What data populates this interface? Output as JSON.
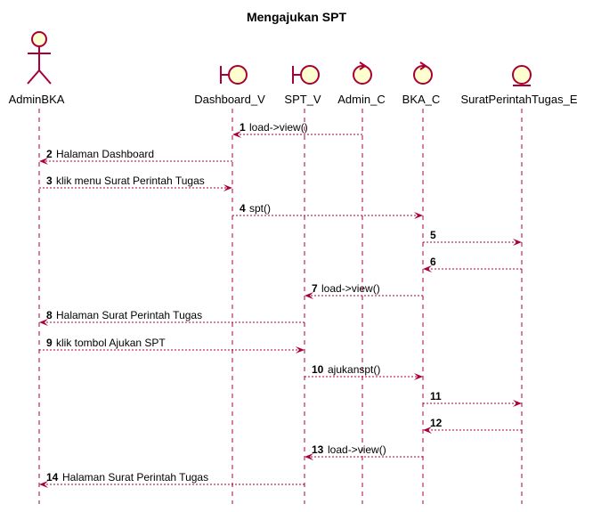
{
  "title": "Mengajukan SPT",
  "colors": {
    "line": "#A80036",
    "icon_fill": "#FEFECE",
    "text": "#000000",
    "background": "#FFFFFF"
  },
  "participants": [
    {
      "id": "AdminBKA",
      "label": "AdminBKA",
      "kind": "actor"
    },
    {
      "id": "Dashboard_V",
      "label": "Dashboard_V",
      "kind": "boundary"
    },
    {
      "id": "SPT_V",
      "label": "SPT_V",
      "kind": "boundary"
    },
    {
      "id": "Admin_C",
      "label": "Admin_C",
      "kind": "control"
    },
    {
      "id": "BKA_C",
      "label": "BKA_C",
      "kind": "control"
    },
    {
      "id": "SuratPerintahTugas_E",
      "label": "SuratPerintahTugas_E",
      "kind": "entity"
    }
  ],
  "messages": [
    {
      "num": "1",
      "text": "load->view()",
      "from": "Admin_C",
      "to": "Dashboard_V"
    },
    {
      "num": "2",
      "text": "Halaman Dashboard",
      "from": "Dashboard_V",
      "to": "AdminBKA"
    },
    {
      "num": "3",
      "text": "klik menu Surat Perintah Tugas",
      "from": "AdminBKA",
      "to": "Dashboard_V"
    },
    {
      "num": "4",
      "text": "spt()",
      "from": "Dashboard_V",
      "to": "BKA_C"
    },
    {
      "num": "5",
      "text": "",
      "from": "BKA_C",
      "to": "SuratPerintahTugas_E"
    },
    {
      "num": "6",
      "text": "",
      "from": "SuratPerintahTugas_E",
      "to": "BKA_C"
    },
    {
      "num": "7",
      "text": "load->view()",
      "from": "BKA_C",
      "to": "SPT_V"
    },
    {
      "num": "8",
      "text": "Halaman Surat Perintah Tugas",
      "from": "SPT_V",
      "to": "AdminBKA"
    },
    {
      "num": "9",
      "text": "klik tombol Ajukan SPT",
      "from": "AdminBKA",
      "to": "SPT_V"
    },
    {
      "num": "10",
      "text": "ajukanspt()",
      "from": "SPT_V",
      "to": "BKA_C"
    },
    {
      "num": "11",
      "text": "",
      "from": "BKA_C",
      "to": "SuratPerintahTugas_E"
    },
    {
      "num": "12",
      "text": "",
      "from": "SuratPerintahTugas_E",
      "to": "BKA_C"
    },
    {
      "num": "13",
      "text": "load->view()",
      "from": "BKA_C",
      "to": "SPT_V"
    },
    {
      "num": "14",
      "text": "Halaman Surat Perintah Tugas",
      "from": "SPT_V",
      "to": "AdminBKA"
    }
  ]
}
